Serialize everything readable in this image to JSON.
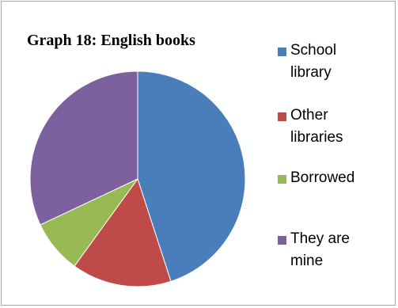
{
  "chart_data": {
    "type": "pie",
    "title": "Graph 18: English books",
    "legend_position": "right",
    "series": [
      {
        "name": "",
        "values": [
          45,
          15,
          8,
          32
        ]
      }
    ],
    "categories": [
      "School library",
      "Other libraries",
      "Borrowed",
      "They are mine"
    ],
    "legend": [
      {
        "line1": "School",
        "line2": "library",
        "color": "#4a7ebb"
      },
      {
        "line1": "Other",
        "line2": "libraries",
        "color": "#be4b48"
      },
      {
        "line1": "Borrowed",
        "line2": "",
        "color": "#98b954"
      },
      {
        "line1": "They are",
        "line2": "mine",
        "color": "#7d60a0"
      }
    ],
    "slice_colors": [
      "#4a7ebb",
      "#be4b48",
      "#98b954",
      "#7d60a0"
    ]
  }
}
